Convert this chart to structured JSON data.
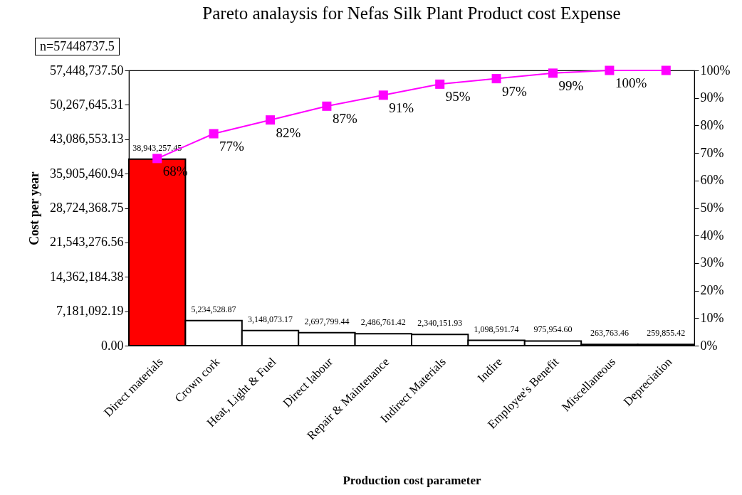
{
  "chart_data": {
    "type": "bar",
    "title": "Pareto analaysis for Nefas Silk Plant Product cost Expense",
    "xlabel": "Production cost parameter",
    "ylabel": "Cost per year",
    "annotations": [
      "n=57448737.5"
    ],
    "categories": [
      "Direct materials",
      "Crown cork",
      "Heat, Light & Fuel",
      "Direct labour",
      "Repair & Maintenance",
      "Indirect Materials",
      "Indire",
      "Employee's Benefit",
      "Miscellaneous",
      "Depreciation"
    ],
    "series": [
      {
        "colors": [
          "#ff0000",
          "#ffffff",
          "#ffffff",
          "#ffffff",
          "#ffffff",
          "#ffffff",
          "#ffffff",
          "#ffffff",
          "#ffffff",
          "#ffffff"
        ],
        "values": [
          38943257.45,
          5234528.87,
          3148073.17,
          2697799.44,
          2486761.42,
          2340151.93,
          1098591.74,
          975954.6,
          263763.46,
          259855.42
        ],
        "value_labels": [
          "38,943,257.45",
          "5,234,528.87",
          "3,148,073.17",
          "2,697,799.44",
          "2,486,761.42",
          "2,340,151.93",
          "1,098,591.74",
          "975,954.60",
          "263,763.46",
          "259,855.42"
        ]
      },
      {
        "type": "line",
        "axis": "y2",
        "color": "#ff00ff",
        "values": [
          68,
          77,
          82,
          87,
          91,
          95,
          97,
          99,
          100,
          100
        ],
        "value_labels": [
          "68%",
          "77%",
          "82%",
          "87%",
          "91%",
          "95%",
          "97%",
          "99%",
          "100%",
          null
        ]
      }
    ],
    "marker": "square",
    "ylim": [
      0,
      57448737.5
    ],
    "yticks": [
      {
        "value": 0,
        "label": "0.00"
      },
      {
        "value": 7181092.19,
        "label": "7,181,092.19"
      },
      {
        "value": 14362184.38,
        "label": "14,362,184.38"
      },
      {
        "value": 21543276.56,
        "label": "21,543,276.56"
      },
      {
        "value": 28724368.75,
        "label": "28,724,368.75"
      },
      {
        "value": 35905460.94,
        "label": "35,905,460.94"
      },
      {
        "value": 43086553.13,
        "label": "43,086,553.13"
      },
      {
        "value": 50267645.31,
        "label": "50,267,645.31"
      },
      {
        "value": 57448737.5,
        "label": "57,448,737.50"
      }
    ],
    "y2lim": [
      0,
      100
    ],
    "y2ticks": [
      {
        "value": 0,
        "label": "0%"
      },
      {
        "value": 10,
        "label": "10%"
      },
      {
        "value": 20,
        "label": "20%"
      },
      {
        "value": 30,
        "label": "30%"
      },
      {
        "value": 40,
        "label": "40%"
      },
      {
        "value": 50,
        "label": "50%"
      },
      {
        "value": 60,
        "label": "60%"
      },
      {
        "value": 70,
        "label": "70%"
      },
      {
        "value": 80,
        "label": "80%"
      },
      {
        "value": 90,
        "label": "90%"
      },
      {
        "value": 100,
        "label": "100%"
      }
    ]
  }
}
